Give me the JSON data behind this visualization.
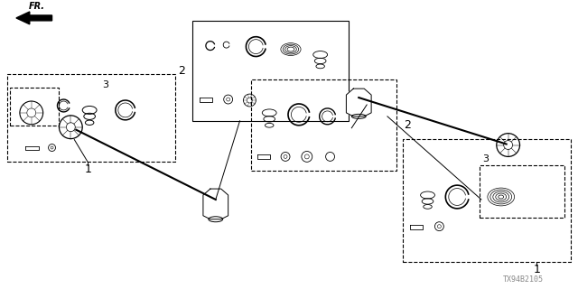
{
  "bg_color": "#ffffff",
  "line_color": "#000000",
  "label_1_left": "1",
  "label_1_right": "1",
  "label_2_top": "2",
  "label_2_bottom": "2",
  "label_3_left": "3",
  "label_3_right": "3",
  "fr_label": "FR.",
  "part_number": "TX94B2105"
}
